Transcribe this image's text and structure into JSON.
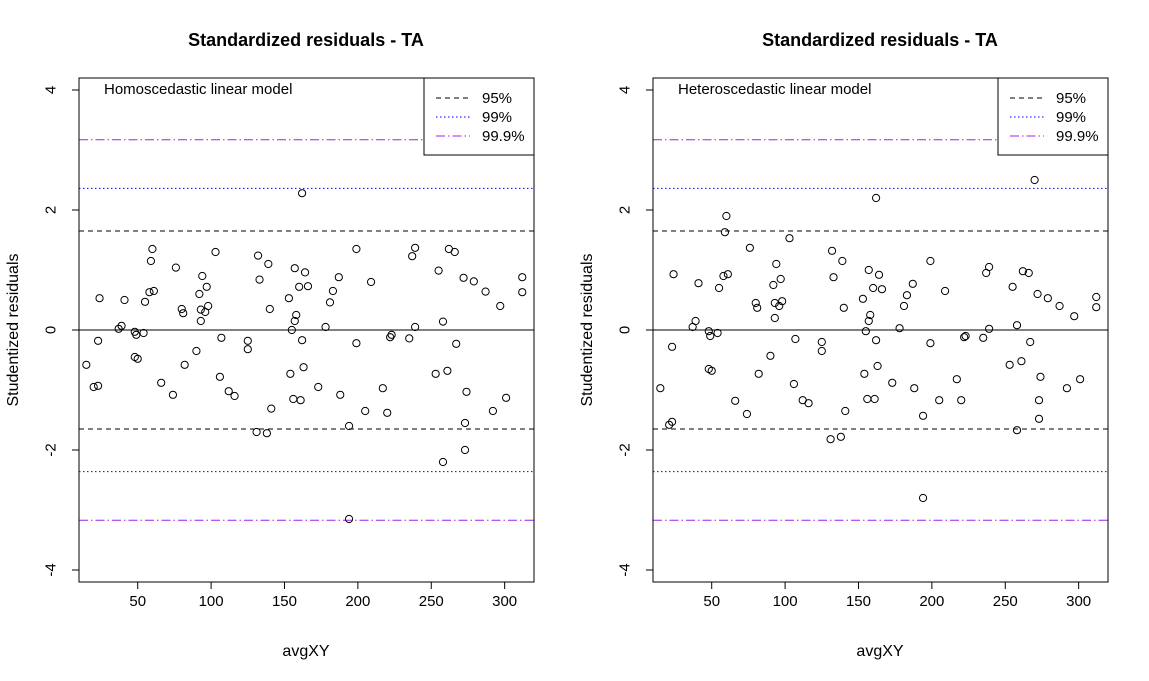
{
  "chart_data": [
    {
      "type": "scatter",
      "title": "Standardized residuals - TA",
      "subtitle": "Homoscedastic linear model",
      "xlabel": "avgXY",
      "ylabel": "Studentized residuals",
      "xlim": [
        10,
        320
      ],
      "ylim": [
        -4.2,
        4.2
      ],
      "xticks": [
        50,
        100,
        150,
        200,
        250,
        300
      ],
      "yticks": [
        -4,
        -2,
        0,
        2,
        4
      ],
      "grid": false,
      "legend_position": "top-right",
      "reference_lines": [
        {
          "name": "zero",
          "value": 0,
          "style": "solid",
          "color": "#000000"
        },
        {
          "name": "95%",
          "value": 1.65,
          "style": "dashed",
          "color": "#000000"
        },
        {
          "name": "99%",
          "value": 2.36,
          "style": "dotted",
          "color": "#0000ff"
        },
        {
          "name": "99.9%",
          "value": 3.17,
          "style": "dotdash",
          "color": "#a020f0"
        }
      ],
      "legend": [
        {
          "label": "95%",
          "style": "dashed",
          "color": "#000000"
        },
        {
          "label": "99%",
          "style": "dotted",
          "color": "#0000ff"
        },
        {
          "label": "99.9%",
          "style": "dotdash",
          "color": "#a020f0"
        }
      ],
      "points": [
        [
          15,
          -0.58
        ],
        [
          20,
          -0.95
        ],
        [
          23,
          -0.93
        ],
        [
          23,
          -0.18
        ],
        [
          24,
          0.53
        ],
        [
          37,
          0.02
        ],
        [
          39,
          0.07
        ],
        [
          41,
          0.5
        ],
        [
          48,
          -0.03
        ],
        [
          48,
          -0.45
        ],
        [
          49,
          -0.08
        ],
        [
          50,
          -0.48
        ],
        [
          54,
          -0.05
        ],
        [
          55,
          0.47
        ],
        [
          58,
          0.63
        ],
        [
          59,
          1.15
        ],
        [
          60,
          1.35
        ],
        [
          61,
          0.65
        ],
        [
          66,
          -0.88
        ],
        [
          74,
          -1.08
        ],
        [
          76,
          1.04
        ],
        [
          80,
          0.35
        ],
        [
          81,
          0.28
        ],
        [
          82,
          -0.58
        ],
        [
          90,
          -0.35
        ],
        [
          92,
          0.6
        ],
        [
          93,
          0.34
        ],
        [
          93,
          0.15
        ],
        [
          94,
          0.9
        ],
        [
          96,
          0.3
        ],
        [
          97,
          0.72
        ],
        [
          98,
          0.4
        ],
        [
          103,
          1.3
        ],
        [
          106,
          -0.78
        ],
        [
          107,
          -0.13
        ],
        [
          112,
          -1.02
        ],
        [
          116,
          -1.1
        ],
        [
          125,
          -0.18
        ],
        [
          125,
          -0.32
        ],
        [
          131,
          -1.7
        ],
        [
          132,
          1.24
        ],
        [
          133,
          0.84
        ],
        [
          138,
          -1.72
        ],
        [
          139,
          1.1
        ],
        [
          140,
          0.35
        ],
        [
          141,
          -1.31
        ],
        [
          153,
          0.53
        ],
        [
          154,
          -0.73
        ],
        [
          155,
          0.0
        ],
        [
          156,
          -1.15
        ],
        [
          157,
          0.15
        ],
        [
          157,
          1.03
        ],
        [
          158,
          0.25
        ],
        [
          160,
          0.72
        ],
        [
          161,
          -1.17
        ],
        [
          162,
          2.28
        ],
        [
          162,
          -0.17
        ],
        [
          163,
          -0.62
        ],
        [
          164,
          0.96
        ],
        [
          166,
          0.73
        ],
        [
          173,
          -0.95
        ],
        [
          178,
          0.05
        ],
        [
          181,
          0.46
        ],
        [
          183,
          0.65
        ],
        [
          187,
          0.88
        ],
        [
          188,
          -1.08
        ],
        [
          194,
          -1.6
        ],
        [
          194,
          -3.15
        ],
        [
          199,
          -0.22
        ],
        [
          199,
          1.35
        ],
        [
          205,
          -1.35
        ],
        [
          209,
          0.8
        ],
        [
          217,
          -0.97
        ],
        [
          220,
          -1.38
        ],
        [
          222,
          -0.12
        ],
        [
          223,
          -0.08
        ],
        [
          235,
          -0.14
        ],
        [
          237,
          1.23
        ],
        [
          239,
          1.37
        ],
        [
          239,
          0.05
        ],
        [
          253,
          -0.73
        ],
        [
          255,
          0.99
        ],
        [
          258,
          0.14
        ],
        [
          258,
          -2.2
        ],
        [
          261,
          -0.68
        ],
        [
          262,
          1.35
        ],
        [
          266,
          1.3
        ],
        [
          267,
          -0.23
        ],
        [
          272,
          0.87
        ],
        [
          273,
          -1.55
        ],
        [
          273,
          -2.0
        ],
        [
          274,
          -1.03
        ],
        [
          279,
          0.81
        ],
        [
          287,
          0.64
        ],
        [
          292,
          -1.35
        ],
        [
          297,
          0.4
        ],
        [
          301,
          -1.13
        ],
        [
          312,
          0.88
        ],
        [
          312,
          0.63
        ]
      ]
    },
    {
      "type": "scatter",
      "title": "Standardized residuals - TA",
      "subtitle": "Heteroscedastic linear model",
      "xlabel": "avgXY",
      "ylabel": "Studentized residuals",
      "xlim": [
        10,
        320
      ],
      "ylim": [
        -4.2,
        4.2
      ],
      "xticks": [
        50,
        100,
        150,
        200,
        250,
        300
      ],
      "yticks": [
        -4,
        -2,
        0,
        2,
        4
      ],
      "grid": false,
      "legend_position": "top-right",
      "reference_lines": [
        {
          "name": "zero",
          "value": 0,
          "style": "solid",
          "color": "#000000"
        },
        {
          "name": "95%",
          "value": 1.65,
          "style": "dashed",
          "color": "#000000"
        },
        {
          "name": "99%",
          "value": 2.36,
          "style": "dotted",
          "color": "#0000ff"
        },
        {
          "name": "99.9%",
          "value": 3.17,
          "style": "dotdash",
          "color": "#a020f0"
        }
      ],
      "legend": [
        {
          "label": "95%",
          "style": "dashed",
          "color": "#000000"
        },
        {
          "label": "99%",
          "style": "dotted",
          "color": "#0000ff"
        },
        {
          "label": "99.9%",
          "style": "dotdash",
          "color": "#a020f0"
        }
      ],
      "points": [
        [
          15,
          -0.97
        ],
        [
          21,
          -1.58
        ],
        [
          23,
          -1.53
        ],
        [
          23,
          -0.28
        ],
        [
          24,
          0.93
        ],
        [
          37,
          0.05
        ],
        [
          39,
          0.15
        ],
        [
          41,
          0.78
        ],
        [
          48,
          -0.02
        ],
        [
          48,
          -0.65
        ],
        [
          49,
          -0.1
        ],
        [
          50,
          -0.68
        ],
        [
          54,
          -0.05
        ],
        [
          55,
          0.7
        ],
        [
          58,
          0.9
        ],
        [
          59,
          1.63
        ],
        [
          60,
          1.9
        ],
        [
          61,
          0.93
        ],
        [
          66,
          -1.18
        ],
        [
          74,
          -1.4
        ],
        [
          76,
          1.37
        ],
        [
          80,
          0.45
        ],
        [
          81,
          0.37
        ],
        [
          82,
          -0.73
        ],
        [
          90,
          -0.43
        ],
        [
          92,
          0.75
        ],
        [
          93,
          0.45
        ],
        [
          93,
          0.2
        ],
        [
          94,
          1.1
        ],
        [
          96,
          0.4
        ],
        [
          97,
          0.85
        ],
        [
          98,
          0.48
        ],
        [
          103,
          1.53
        ],
        [
          106,
          -0.9
        ],
        [
          107,
          -0.15
        ],
        [
          112,
          -1.17
        ],
        [
          116,
          -1.22
        ],
        [
          125,
          -0.2
        ],
        [
          125,
          -0.35
        ],
        [
          131,
          -1.82
        ],
        [
          132,
          1.32
        ],
        [
          133,
          0.88
        ],
        [
          138,
          -1.78
        ],
        [
          139,
          1.15
        ],
        [
          140,
          0.37
        ],
        [
          141,
          -1.35
        ],
        [
          153,
          0.52
        ],
        [
          154,
          -0.73
        ],
        [
          155,
          -0.02
        ],
        [
          156,
          -1.15
        ],
        [
          157,
          0.15
        ],
        [
          157,
          1.0
        ],
        [
          158,
          0.25
        ],
        [
          160,
          0.7
        ],
        [
          161,
          -1.15
        ],
        [
          162,
          2.2
        ],
        [
          162,
          -0.17
        ],
        [
          163,
          -0.6
        ],
        [
          164,
          0.92
        ],
        [
          166,
          0.68
        ],
        [
          173,
          -0.88
        ],
        [
          178,
          0.03
        ],
        [
          181,
          0.4
        ],
        [
          183,
          0.58
        ],
        [
          187,
          0.77
        ],
        [
          188,
          -0.97
        ],
        [
          194,
          -1.43
        ],
        [
          194,
          -2.8
        ],
        [
          199,
          -0.22
        ],
        [
          199,
          1.15
        ],
        [
          205,
          -1.17
        ],
        [
          209,
          0.65
        ],
        [
          217,
          -0.82
        ],
        [
          220,
          -1.17
        ],
        [
          222,
          -0.12
        ],
        [
          223,
          -0.1
        ],
        [
          235,
          -0.13
        ],
        [
          237,
          0.95
        ],
        [
          239,
          1.05
        ],
        [
          239,
          0.02
        ],
        [
          253,
          -0.58
        ],
        [
          255,
          0.72
        ],
        [
          258,
          0.08
        ],
        [
          258,
          -1.67
        ],
        [
          261,
          -0.52
        ],
        [
          262,
          0.98
        ],
        [
          266,
          0.95
        ],
        [
          267,
          -0.2
        ],
        [
          270,
          2.5
        ],
        [
          272,
          0.6
        ],
        [
          273,
          -1.48
        ],
        [
          273,
          -1.17
        ],
        [
          274,
          -0.78
        ],
        [
          279,
          0.53
        ],
        [
          287,
          0.4
        ],
        [
          292,
          -0.97
        ],
        [
          297,
          0.23
        ],
        [
          301,
          -0.82
        ],
        [
          312,
          0.55
        ],
        [
          312,
          0.38
        ]
      ]
    }
  ]
}
